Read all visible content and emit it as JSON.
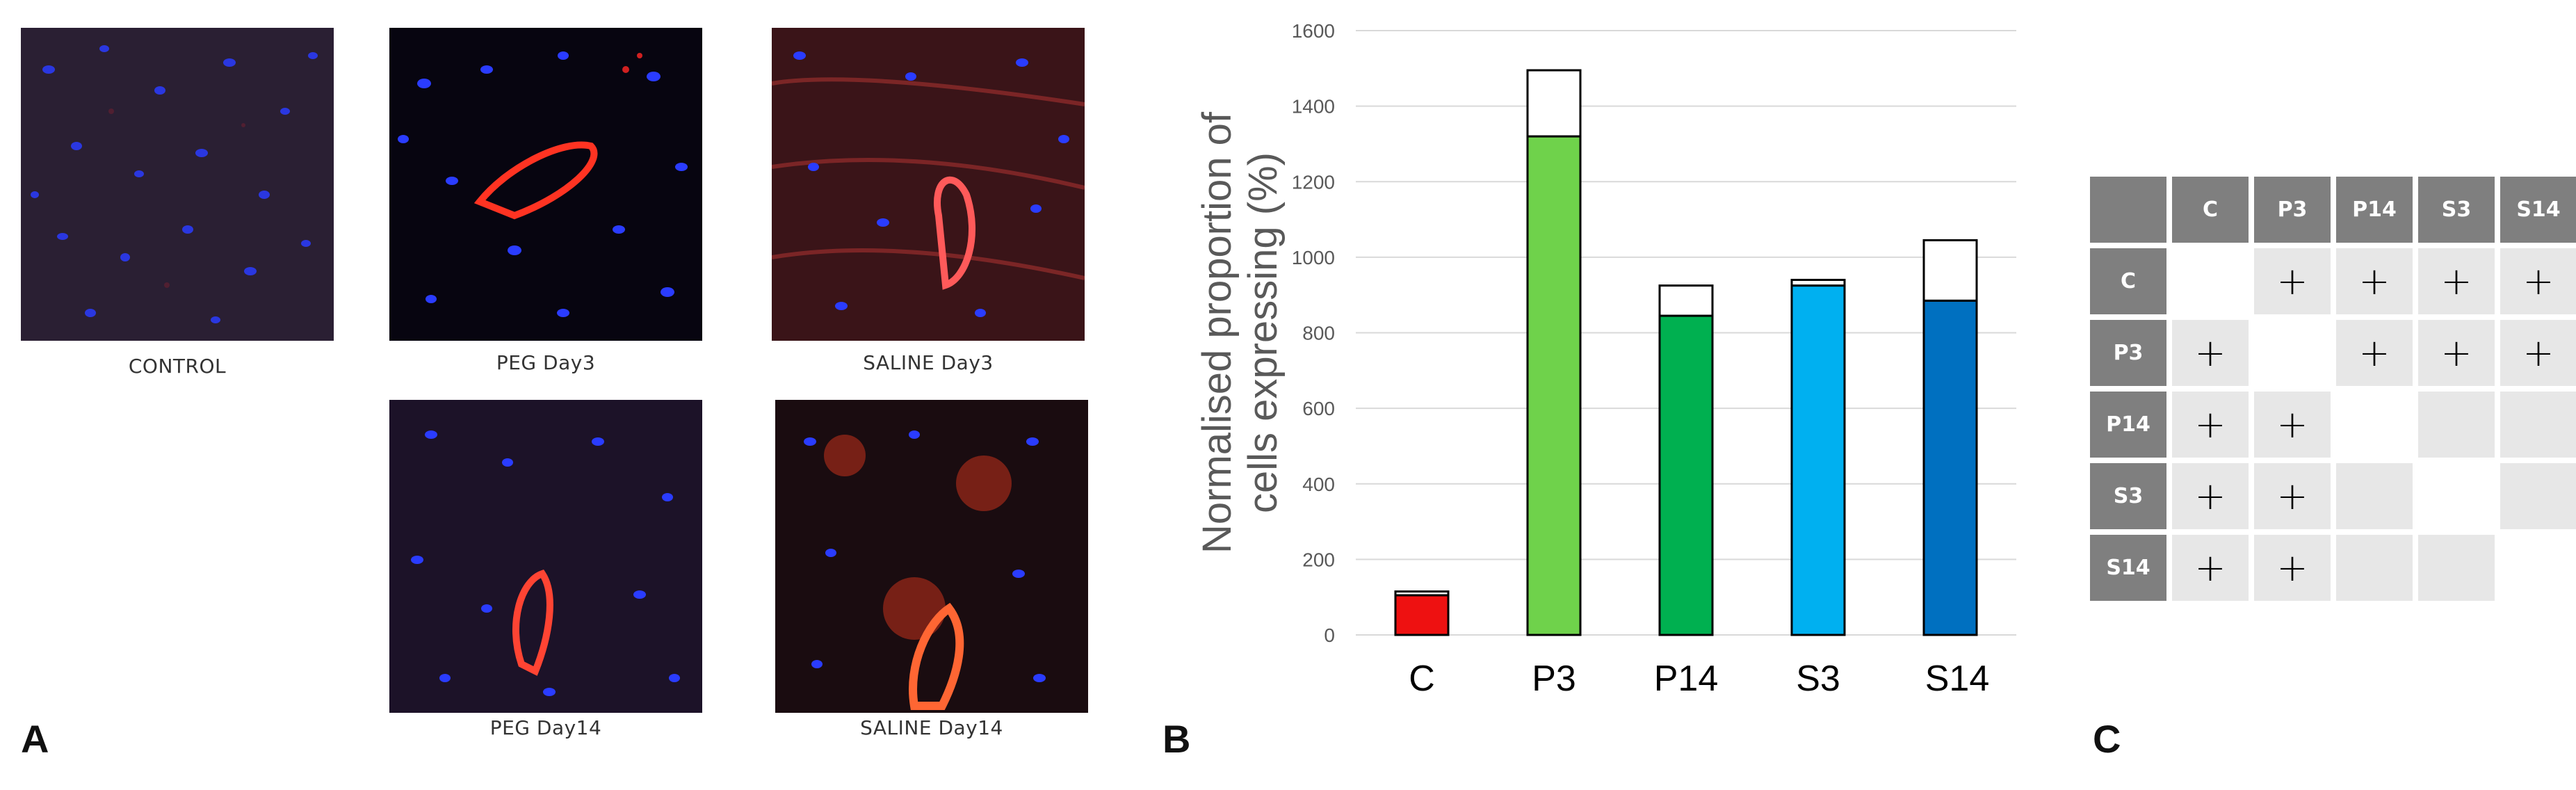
{
  "panel_a": {
    "letter": "A",
    "images": [
      {
        "label": "CONTROL"
      },
      {
        "label": "PEG Day3"
      },
      {
        "label": "SALINE Day3"
      },
      {
        "label": "PEG Day14"
      },
      {
        "label": "SALINE Day14"
      }
    ]
  },
  "panel_b": {
    "letter": "B"
  },
  "panel_c": {
    "letter": "C"
  },
  "chart_data": {
    "type": "bar",
    "title": "",
    "xlabel": "",
    "ylabel": "Normalised proportion of cells expressing (%)",
    "ylabel_lines": [
      "Normalised proportion of",
      "cells expressing (%)"
    ],
    "ylim": [
      0,
      1600
    ],
    "yticks": [
      0,
      200,
      400,
      600,
      800,
      1000,
      1200,
      1400,
      1600
    ],
    "grid": true,
    "categories": [
      "C",
      "P3",
      "P14",
      "S3",
      "S14"
    ],
    "series": [
      {
        "values": [
          105,
          1320,
          845,
          925,
          885
        ]
      },
      {
        "values": [
          10,
          175,
          80,
          15,
          160
        ]
      }
    ],
    "colors": [
      "#ee1111",
      "#6fd24b",
      "#00b050",
      "#00b0f0",
      "#0070c0"
    ],
    "stack_color": "#ffffff"
  },
  "matrix": {
    "headers": [
      "C",
      "P3",
      "P14",
      "S3",
      "S14"
    ],
    "rows": [
      {
        "label": "C",
        "cells": [
          "",
          "+",
          "+",
          "+",
          "+"
        ]
      },
      {
        "label": "P3",
        "cells": [
          "+",
          "",
          "+",
          "+",
          "+"
        ]
      },
      {
        "label": "P14",
        "cells": [
          "+",
          "+",
          "",
          "",
          ""
        ]
      },
      {
        "label": "S3",
        "cells": [
          "+",
          "+",
          "",
          "",
          ""
        ]
      },
      {
        "label": "S14",
        "cells": [
          "+",
          "+",
          "",
          "",
          ""
        ]
      }
    ]
  }
}
